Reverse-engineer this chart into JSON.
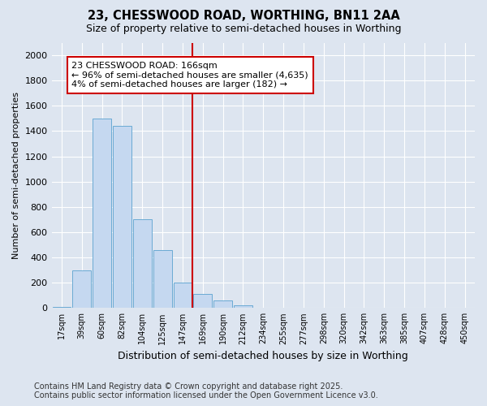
{
  "title1": "23, CHESSWOOD ROAD, WORTHING, BN11 2AA",
  "title2": "Size of property relative to semi-detached houses in Worthing",
  "xlabel": "Distribution of semi-detached houses by size in Worthing",
  "ylabel": "Number of semi-detached properties",
  "categories": [
    "17sqm",
    "39sqm",
    "60sqm",
    "82sqm",
    "104sqm",
    "125sqm",
    "147sqm",
    "169sqm",
    "190sqm",
    "212sqm",
    "234sqm",
    "255sqm",
    "277sqm",
    "298sqm",
    "320sqm",
    "342sqm",
    "363sqm",
    "385sqm",
    "407sqm",
    "428sqm",
    "450sqm"
  ],
  "values": [
    10,
    300,
    1500,
    1440,
    700,
    460,
    200,
    110,
    60,
    20,
    0,
    0,
    0,
    0,
    0,
    0,
    0,
    0,
    0,
    0,
    0
  ],
  "bar_color": "#c5d8f0",
  "bar_edge_color": "#6aaad4",
  "vline_color": "#cc0000",
  "vline_x_index": 7,
  "annotation_box_text": "23 CHESSWOOD ROAD: 166sqm\n← 96% of semi-detached houses are smaller (4,635)\n4% of semi-detached houses are larger (182) →",
  "ylim": [
    0,
    2100
  ],
  "yticks": [
    0,
    200,
    400,
    600,
    800,
    1000,
    1200,
    1400,
    1600,
    1800,
    2000
  ],
  "background_color": "#dde5f0",
  "plot_bg_color": "#dde5f0",
  "footer1": "Contains HM Land Registry data © Crown copyright and database right 2025.",
  "footer2": "Contains public sector information licensed under the Open Government Licence v3.0.",
  "title1_fontsize": 10.5,
  "title2_fontsize": 9,
  "annotation_fontsize": 8,
  "ylabel_fontsize": 8,
  "xlabel_fontsize": 9,
  "footer_fontsize": 7,
  "ytick_fontsize": 8,
  "xtick_fontsize": 7
}
